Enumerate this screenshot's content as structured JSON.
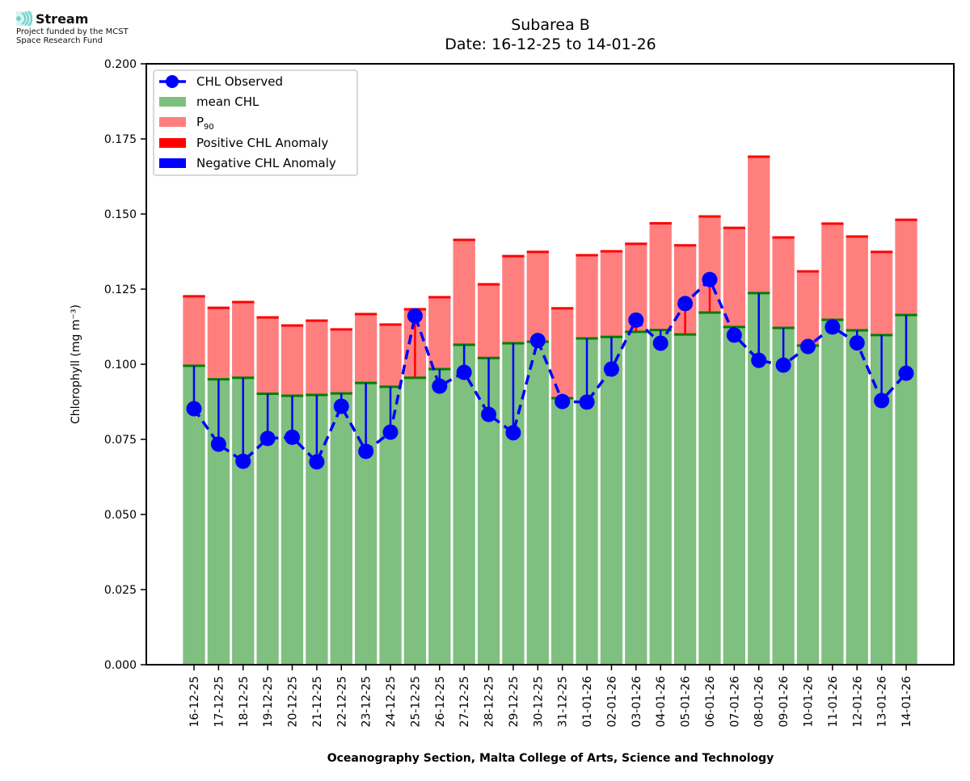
{
  "logo": {
    "name": "Stream",
    "funded_line1": "Project funded by the MCST",
    "funded_line2": "Space Research Fund",
    "icon": "stream-waves-icon",
    "icon_color": "#6fd3cf"
  },
  "chart_data": {
    "type": "bar",
    "title": "Subarea B",
    "subtitle": "Date: 16-12-25 to 14-01-26",
    "xlabel": "Oceanography Section, Malta College of Arts, Science and Technology",
    "ylabel": "Chlorophyll (mg m⁻³)",
    "ylim": [
      0,
      0.2
    ],
    "yticks": [
      "0.000",
      "0.025",
      "0.050",
      "0.075",
      "0.100",
      "0.125",
      "0.150",
      "0.175",
      "0.200"
    ],
    "grid": false,
    "legend_position": "top-left",
    "legend": [
      {
        "label": "CHL Observed",
        "kind": "line-marker",
        "color": "#0000ff"
      },
      {
        "label": "mean CHL",
        "kind": "patch",
        "color": "#7fbf7f"
      },
      {
        "label": "P",
        "sub": "90",
        "kind": "patch",
        "color": "#ff7f7f"
      },
      {
        "label": "Positive CHL Anomaly",
        "kind": "patch",
        "color": "#ff0000"
      },
      {
        "label": "Negative CHL Anomaly",
        "kind": "patch",
        "color": "#0000ff"
      }
    ],
    "colors": {
      "mean": "#7fbf7f",
      "mean_edge": "#007f00",
      "p90": "#ff7f7f",
      "p90_edge": "#ff0000",
      "observed": "#0000ff",
      "positive_anomaly": "#ff0000",
      "negative_anomaly": "#0000ff"
    },
    "categories": [
      "16-12-25",
      "17-12-25",
      "18-12-25",
      "19-12-25",
      "20-12-25",
      "21-12-25",
      "22-12-25",
      "23-12-25",
      "24-12-25",
      "25-12-25",
      "26-12-25",
      "27-12-25",
      "28-12-25",
      "29-12-25",
      "30-12-25",
      "31-12-25",
      "01-01-26",
      "02-01-26",
      "03-01-26",
      "04-01-26",
      "05-01-26",
      "06-01-26",
      "07-01-26",
      "08-01-26",
      "09-01-26",
      "10-01-26",
      "11-01-26",
      "12-01-26",
      "13-01-26",
      "14-01-26"
    ],
    "series": [
      {
        "name": "mean CHL",
        "values": [
          0.0995,
          0.095,
          0.0955,
          0.0902,
          0.0895,
          0.0898,
          0.0903,
          0.0938,
          0.0925,
          0.0955,
          0.0984,
          0.1065,
          0.1021,
          0.107,
          0.1075,
          0.0887,
          0.1086,
          0.1091,
          0.1108,
          0.1114,
          0.1099,
          0.1172,
          0.1124,
          0.1237,
          0.1121,
          0.1062,
          0.1148,
          0.1113,
          0.1097,
          0.1164
        ]
      },
      {
        "name": "P90",
        "values": [
          0.1226,
          0.1188,
          0.1207,
          0.1156,
          0.1129,
          0.1145,
          0.1116,
          0.1167,
          0.1132,
          0.1183,
          0.1223,
          0.1414,
          0.1266,
          0.136,
          0.1374,
          0.1186,
          0.1363,
          0.1376,
          0.1401,
          0.1469,
          0.1396,
          0.1492,
          0.1454,
          0.1691,
          0.1422,
          0.1309,
          0.1468,
          0.1425,
          0.1374,
          0.1481
        ]
      },
      {
        "name": "CHL Observed",
        "values": [
          0.0852,
          0.0734,
          0.0677,
          0.0753,
          0.0757,
          0.0675,
          0.086,
          0.071,
          0.0774,
          0.1161,
          0.0927,
          0.0973,
          0.0833,
          0.0772,
          0.1079,
          0.0876,
          0.0874,
          0.0984,
          0.1147,
          0.107,
          0.1202,
          0.1282,
          0.1097,
          0.1013,
          0.0997,
          0.1059,
          0.1124,
          0.1071,
          0.0879,
          0.097
        ]
      }
    ]
  }
}
